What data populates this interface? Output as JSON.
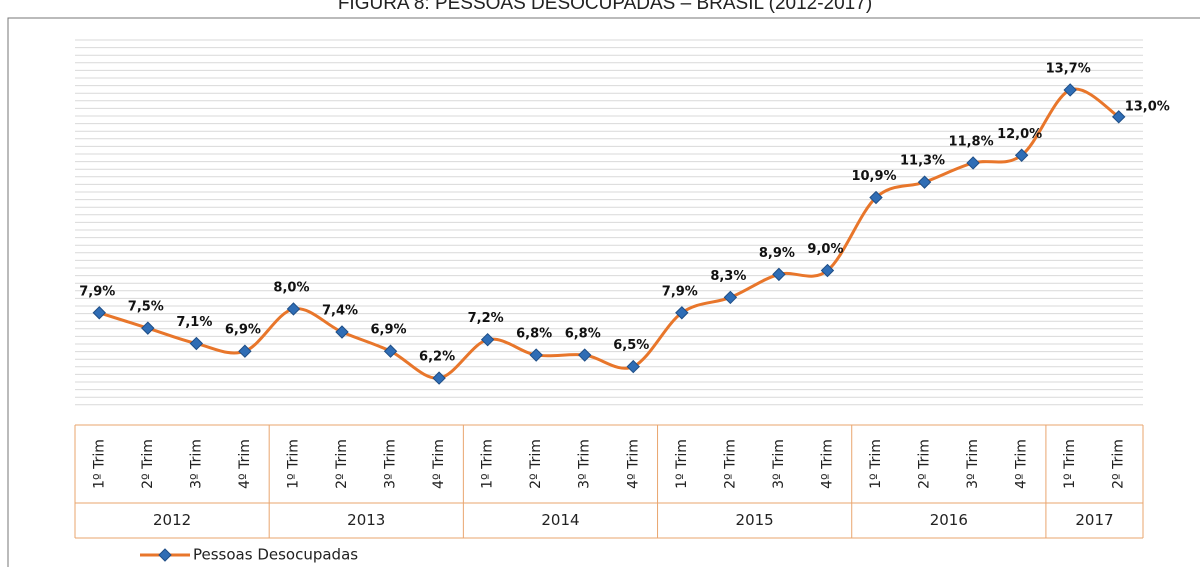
{
  "chart_data": {
    "type": "line",
    "title": "FIGURA 8: PESSOAS DESOCUPADAS – BRASIL (2012-2017)",
    "categories": [
      "1º Trim",
      "2º Trim",
      "3º Trim",
      "4º Trim",
      "1º Trim",
      "2º Trim",
      "3º Trim",
      "4º Trim",
      "1º Trim",
      "2º Trim",
      "3º Trim",
      "4º Trim",
      "1º Trim",
      "2º Trim",
      "3º Trim",
      "4º Trim",
      "1º Trim",
      "2º Trim",
      "3º Trim",
      "4º Trim",
      "1º Trim",
      "2º Trim"
    ],
    "groups": [
      {
        "label": "2012",
        "count": 4
      },
      {
        "label": "2013",
        "count": 4
      },
      {
        "label": "2014",
        "count": 4
      },
      {
        "label": "2015",
        "count": 4
      },
      {
        "label": "2016",
        "count": 4
      },
      {
        "label": "2017",
        "count": 2
      }
    ],
    "series": [
      {
        "name": "Pessoas Desocupadas",
        "color": "#e8762b",
        "marker_color": "#2f6db5",
        "values": [
          7.9,
          7.5,
          7.1,
          6.9,
          8.0,
          7.4,
          6.9,
          6.2,
          7.2,
          6.8,
          6.8,
          6.5,
          7.9,
          8.3,
          8.9,
          9.0,
          10.9,
          11.3,
          11.8,
          12.0,
          13.7,
          13.0
        ],
        "value_labels": [
          "7,9%",
          "7,5%",
          "7,1%",
          "6,9%",
          "8,0%",
          "7,4%",
          "6,9%",
          "6,2%",
          "7,2%",
          "6,8%",
          "6,8%",
          "6,5%",
          "7,9%",
          "8,3%",
          "8,9%",
          "9,0%",
          "10,9%",
          "11,3%",
          "11,8%",
          "12,0%",
          "13,7%",
          "13,0%"
        ]
      }
    ],
    "ylim": [
      5.5,
      15
    ],
    "grid": true,
    "legend": "bottom-left"
  }
}
